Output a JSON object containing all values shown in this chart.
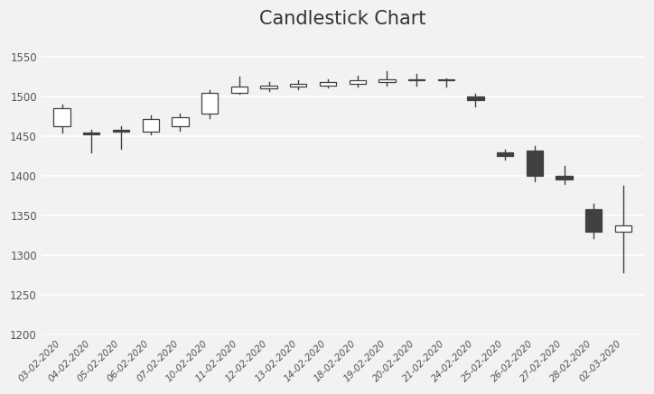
{
  "title": "Candlestick Chart",
  "background_color": "#f2f2f2",
  "plot_bg_color": "#f2f2f2",
  "grid_color": "#ffffff",
  "candle_up_color": "#ffffff",
  "candle_down_color": "#404040",
  "wick_color": "#404040",
  "border_color": "#404040",
  "ylim": [
    1200,
    1575
  ],
  "yticks": [
    1200,
    1250,
    1300,
    1350,
    1400,
    1450,
    1500,
    1550
  ],
  "candles": [
    {
      "date": "03-02-2020",
      "open": 1462,
      "high": 1490,
      "low": 1455,
      "close": 1485
    },
    {
      "date": "04-02-2020",
      "open": 1455,
      "high": 1458,
      "low": 1430,
      "close": 1452
    },
    {
      "date": "05-02-2020",
      "open": 1458,
      "high": 1462,
      "low": 1434,
      "close": 1456
    },
    {
      "date": "06-02-2020",
      "open": 1456,
      "high": 1476,
      "low": 1452,
      "close": 1472
    },
    {
      "date": "07-02-2020",
      "open": 1462,
      "high": 1478,
      "low": 1457,
      "close": 1474
    },
    {
      "date": "10-02-2020",
      "open": 1478,
      "high": 1508,
      "low": 1473,
      "close": 1505
    },
    {
      "date": "11-02-2020",
      "open": 1505,
      "high": 1525,
      "low": 1503,
      "close": 1512
    },
    {
      "date": "12-02-2020",
      "open": 1510,
      "high": 1518,
      "low": 1507,
      "close": 1514
    },
    {
      "date": "13-02-2020",
      "open": 1512,
      "high": 1520,
      "low": 1509,
      "close": 1516
    },
    {
      "date": "14-02-2020",
      "open": 1514,
      "high": 1522,
      "low": 1511,
      "close": 1518
    },
    {
      "date": "18-02-2020",
      "open": 1516,
      "high": 1526,
      "low": 1512,
      "close": 1520
    },
    {
      "date": "19-02-2020",
      "open": 1518,
      "high": 1532,
      "low": 1514,
      "close": 1522
    },
    {
      "date": "20-02-2020",
      "open": 1520,
      "high": 1528,
      "low": 1514,
      "close": 1521
    },
    {
      "date": "21-02-2020",
      "open": 1521,
      "high": 1523,
      "low": 1512,
      "close": 1520
    },
    {
      "date": "24-02-2020",
      "open": 1500,
      "high": 1504,
      "low": 1488,
      "close": 1496
    },
    {
      "date": "25-02-2020",
      "open": 1430,
      "high": 1433,
      "low": 1420,
      "close": 1425
    },
    {
      "date": "26-02-2020",
      "open": 1432,
      "high": 1438,
      "low": 1393,
      "close": 1400
    },
    {
      "date": "27-02-2020",
      "open": 1400,
      "high": 1413,
      "low": 1390,
      "close": 1395
    },
    {
      "date": "28-02-2020",
      "open": 1358,
      "high": 1365,
      "low": 1322,
      "close": 1330
    },
    {
      "date": "02-03-2020",
      "open": 1330,
      "high": 1388,
      "low": 1278,
      "close": 1338
    }
  ]
}
